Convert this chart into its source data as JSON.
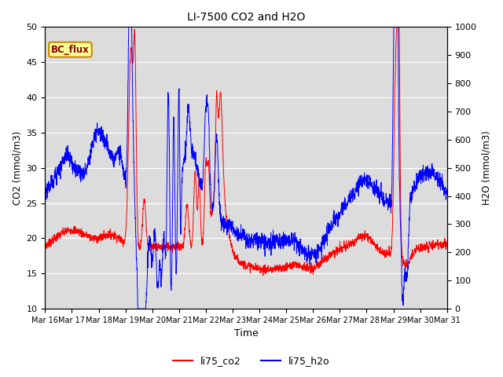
{
  "title": "LI-7500 CO2 and H2O",
  "xlabel": "Time",
  "ylabel_left": "CO2 (mmol/m3)",
  "ylabel_right": "H2O (mmol/m3)",
  "ylim_left": [
    10,
    50
  ],
  "ylim_right": [
    0,
    1000
  ],
  "yticks_left": [
    10,
    15,
    20,
    25,
    30,
    35,
    40,
    45,
    50
  ],
  "yticks_right": [
    0,
    100,
    200,
    300,
    400,
    500,
    600,
    700,
    800,
    900,
    1000
  ],
  "xtick_labels": [
    "Mar 16",
    "Mar 17",
    "Mar 18",
    "Mar 19",
    "Mar 20",
    "Mar 21",
    "Mar 22",
    "Mar 23",
    "Mar 24",
    "Mar 25",
    "Mar 26",
    "Mar 27",
    "Mar 28",
    "Mar 29",
    "Mar 30",
    "Mar 31"
  ],
  "legend_labels": [
    "li75_co2",
    "li75_h2o"
  ],
  "legend_colors": [
    "red",
    "blue"
  ],
  "annotation_text": "BC_flux",
  "annotation_bg": "#FFFF99",
  "annotation_border": "#CC8800",
  "co2_color": "red",
  "h2o_color": "blue",
  "bg_color": "#DCDCDC",
  "fig_color": "#FFFFFF"
}
